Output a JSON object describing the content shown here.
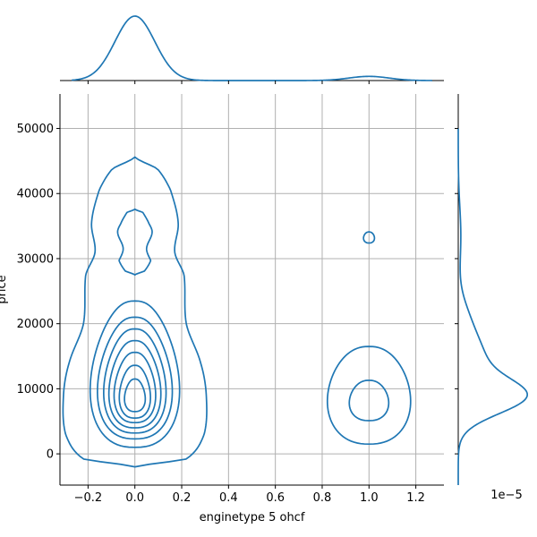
{
  "chart_data": {
    "type": "kde_joint",
    "xlabel": "enginetype 5 ohcf",
    "ylabel": "price",
    "x_ticks": [
      -0.2,
      0.0,
      0.2,
      0.4,
      0.6,
      0.8,
      1.0,
      1.2
    ],
    "x_tick_labels": [
      "−0.2",
      "0.0",
      "0.2",
      "0.4",
      "0.6",
      "0.8",
      "1.0",
      "1.2"
    ],
    "y_ticks": [
      0,
      10000,
      20000,
      30000,
      40000,
      50000
    ],
    "y_tick_labels": [
      "0",
      "10000",
      "20000",
      "30000",
      "40000",
      "50000"
    ],
    "xlim": [
      -0.32,
      1.32
    ],
    "ylim": [
      -4800,
      55300
    ],
    "grid": true,
    "right_marginal_offset_text": "1e−5",
    "color": "#1f77b4",
    "clusters": [
      {
        "center_x": 0.0,
        "contours": [
          {
            "x_halfwidth": 0.305,
            "y_min": -2000,
            "y_max": 45600
          },
          {
            "x_halfwidth": 0.215,
            "y_min": 1000,
            "y_max": 23500
          },
          {
            "x_halfwidth": 0.18,
            "y_min": 2300,
            "y_max": 21000
          },
          {
            "x_halfwidth": 0.15,
            "y_min": 3200,
            "y_max": 19200
          },
          {
            "x_halfwidth": 0.125,
            "y_min": 4000,
            "y_max": 17400
          },
          {
            "x_halfwidth": 0.1,
            "y_min": 4800,
            "y_max": 15600
          },
          {
            "x_halfwidth": 0.075,
            "y_min": 5500,
            "y_max": 13600
          },
          {
            "x_halfwidth": 0.05,
            "y_min": 6500,
            "y_max": 11500
          }
        ],
        "upper_lobes": [
          {
            "x_halfwidth": 0.185,
            "y_min": 26500,
            "y_max": 45600
          },
          {
            "x_halfwidth": 0.075,
            "y_min": 27500,
            "y_max": 37600
          }
        ]
      },
      {
        "center_x": 1.0,
        "contours": [
          {
            "x_halfwidth": 0.19,
            "y_min": 1500,
            "y_max": 16500
          },
          {
            "x_halfwidth": 0.09,
            "y_min": 5100,
            "y_max": 11300
          },
          {
            "x_halfwidth": 0.025,
            "y_min": 32400,
            "y_max": 34100
          }
        ]
      }
    ],
    "top_marginal": {
      "peaks": [
        {
          "x": 0.0,
          "height": 1.0,
          "width": 0.085
        },
        {
          "x": 1.0,
          "height": 0.065,
          "width": 0.085
        }
      ],
      "x_range": [
        -0.27,
        1.27
      ]
    },
    "right_marginal": {
      "peaks": [
        {
          "y": 8800,
          "height": 1.0,
          "width": 2700
        },
        {
          "y": 14500,
          "height": 0.32,
          "width": 3200
        },
        {
          "y": 20000,
          "height": 0.16,
          "width": 3500
        },
        {
          "y": 33500,
          "height": 0.04,
          "width": 4500
        }
      ],
      "y_range": [
        -4800,
        50000
      ]
    }
  }
}
